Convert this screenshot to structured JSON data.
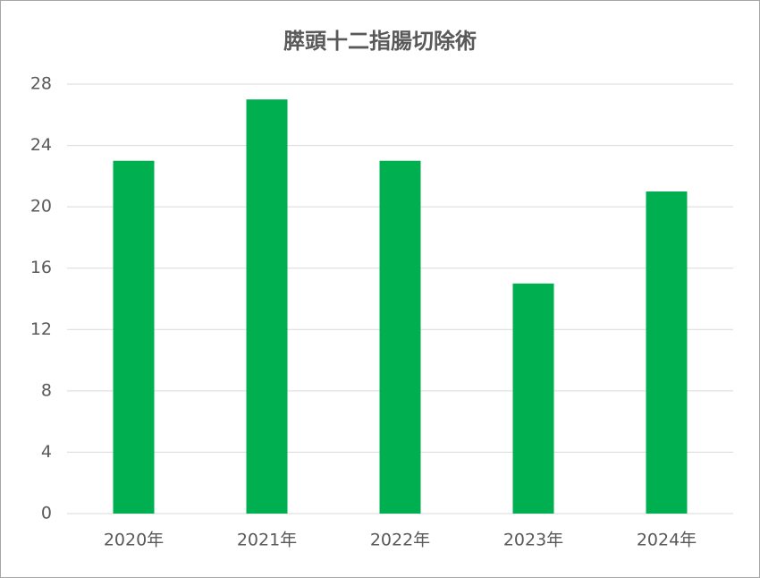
{
  "chart_data": {
    "type": "bar",
    "title": "膵頭十二指腸切除術",
    "categories": [
      "2020年",
      "2021年",
      "2022年",
      "2023年",
      "2024年"
    ],
    "values": [
      23,
      27,
      23,
      15,
      21
    ],
    "color": "#00b050",
    "ylim": [
      0,
      28
    ],
    "yticks": [
      0,
      4,
      8,
      12,
      16,
      20,
      24,
      28
    ],
    "grid": true
  }
}
